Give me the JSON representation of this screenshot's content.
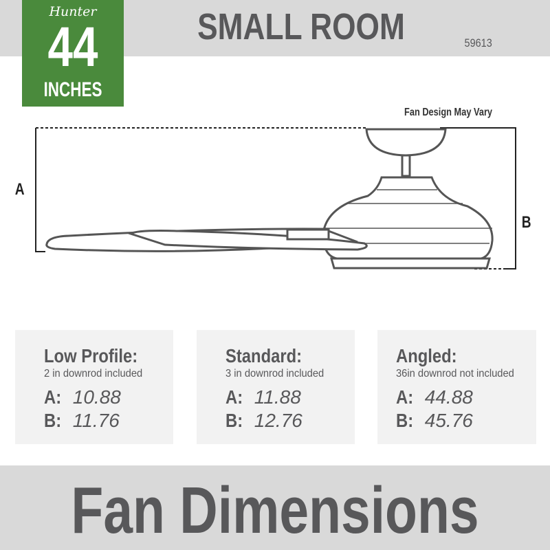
{
  "brand": "Hunter",
  "badge": {
    "size": "44",
    "unit": "INCHES",
    "color": "#4a8a3c"
  },
  "header": {
    "title": "SMALL ROOM",
    "model": "59613"
  },
  "diagram": {
    "note": "Fan Design May Vary",
    "label_a": "A",
    "label_b": "B"
  },
  "options": [
    {
      "title": "Low Profile:",
      "subtitle": "2 in downrod included",
      "a_label": "A:",
      "a": "10.88",
      "b_label": "B:",
      "b": "11.76"
    },
    {
      "title": "Standard:",
      "subtitle": "3 in downrod included",
      "a_label": "A:",
      "a": "11.88",
      "b_label": "B:",
      "b": "12.76"
    },
    {
      "title": "Angled:",
      "subtitle": "36in downrod not included",
      "a_label": "A:",
      "a": "44.88",
      "b_label": "B:",
      "b": "45.76"
    }
  ],
  "footer": {
    "title": "Fan Dimensions"
  }
}
